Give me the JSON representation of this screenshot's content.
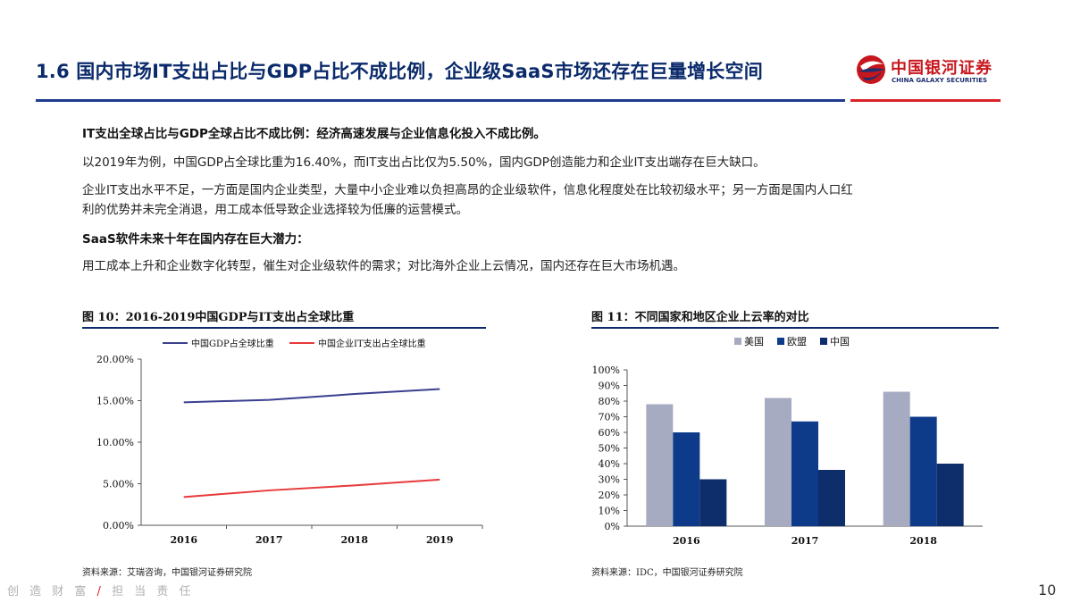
{
  "header": {
    "title": "1.6  国内市场IT支出占比与GDP占比不成比例，企业级SaaS市场还存在巨量增长空间",
    "logo_cn": "中国银河证券",
    "logo_en": "CHINA GALAXY SECURITIES"
  },
  "colors": {
    "navy": "#1d3b8f",
    "red": "#d8232a",
    "bar_us": "#a7abc1",
    "bar_eu": "#0e3a8a",
    "bar_cn": "#0d2d6b"
  },
  "body": {
    "p1": "IT支出全球占比与GDP全球占比不成比例：经济高速发展与企业信息化投入不成比例。",
    "p2": "以2019年为例，中国GDP占全球比重为16.40%，而IT支出占比仅为5.50%，国内GDP创造能力和企业IT支出端存在巨大缺口。",
    "p3a": "企业IT支出水平不足，一方面是国内企业类型，大量中小企业难以负担高昂的企业级软件，信息化程度处在比较初级水平；另一方面是国内人口红",
    "p3b": "利的优势并未完全消退，用工成本低导致企业选择较为低廉的运营模式。",
    "p4": "SaaS软件未来十年在国内存在巨大潜力：",
    "p5": "用工成本上升和企业数字化转型，催生对企业级软件的需求；对比海外企业上云情况，国内还存在巨大市场机遇。"
  },
  "figure10": {
    "title": "图 10：2016-2019中国GDP与IT支出占全球比重",
    "source": "资料来源：艾瑞咨询，中国银河证券研究院"
  },
  "figure11": {
    "title": "图 11：不同国家和地区企业上云率的对比",
    "source": "资料来源：IDC，中国银河证券研究院"
  },
  "footer": {
    "left": "创 造 财 富",
    "slash": "/",
    "right": "担 当 责 任",
    "page": "10"
  },
  "chart_data": [
    {
      "type": "line",
      "x": [
        "2016",
        "2017",
        "2018",
        "2019"
      ],
      "series": [
        {
          "name": "中国GDP占全球比重",
          "values": [
            14.8,
            15.1,
            15.8,
            16.4
          ],
          "color": "#3a3f8f"
        },
        {
          "name": "中国企业IT支出占全球比重",
          "values": [
            3.4,
            4.2,
            4.8,
            5.5
          ],
          "color": "#e8393a"
        }
      ],
      "yticks": [
        "0.00%",
        "5.00%",
        "10.00%",
        "15.00%",
        "20.00%"
      ],
      "ylim": [
        0,
        20
      ],
      "legend": "top",
      "grid": false
    },
    {
      "type": "bar",
      "categories": [
        "2016",
        "2017",
        "2018"
      ],
      "series": [
        {
          "name": "美国",
          "values": [
            78,
            82,
            86
          ],
          "color": "#a7abc1"
        },
        {
          "name": "欧盟",
          "values": [
            60,
            67,
            70
          ],
          "color": "#0e3a8a"
        },
        {
          "name": "中国",
          "values": [
            30,
            36,
            40
          ],
          "color": "#0d2d6b"
        }
      ],
      "yticks": [
        "0%",
        "10%",
        "20%",
        "30%",
        "40%",
        "50%",
        "60%",
        "70%",
        "80%",
        "90%",
        "100%"
      ],
      "ylim": [
        0,
        100
      ],
      "legend": "top-left",
      "grid": false
    }
  ]
}
